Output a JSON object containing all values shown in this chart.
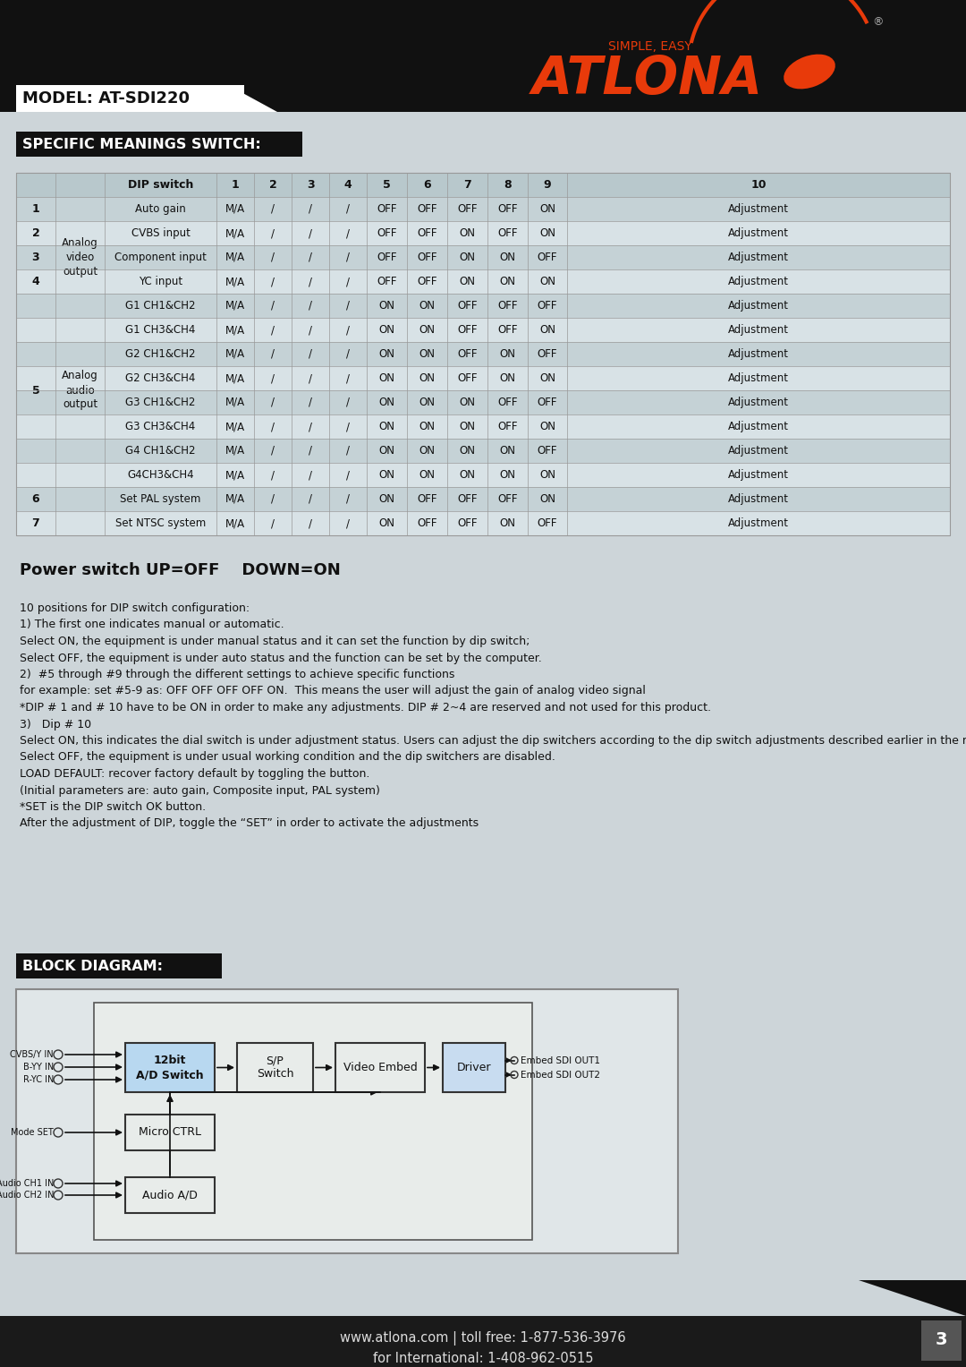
{
  "page_bg": "#cdd5d9",
  "header_bg": "#111111",
  "model_text": "MODEL: AT-SDI220",
  "section1_title": "SPECIFIC MEANINGS SWITCH:",
  "section2_title": "BLOCK DIAGRAM:",
  "title_bg": "#111111",
  "title_color": "#ffffff",
  "table_header_bg": "#b8c8cc",
  "table_row_colors": [
    "#c5d2d6",
    "#d8e2e6"
  ],
  "atlona_orange": "#e83a0a",
  "footer_bg": "#1a1a1a",
  "footer_text1": "www.atlona.com | toll free: 1-877-536-3976",
  "footer_text2": "for International: 1-408-962-0515",
  "page_number": "3",
  "power_text": "Power switch UP=OFF    DOWN=ON",
  "desc_text": "10 positions for DIP switch configuration:\n1) The first one indicates manual or automatic.\nSelect ON, the equipment is under manual status and it can set the function by dip switch;\nSelect OFF, the equipment is under auto status and the function can be set by the computer.\n2)  #5 through #9 through the different settings to achieve specific functions\nfor example: set #5-9 as: OFF OFF OFF OFF ON.  This means the user will adjust the gain of analog video signal\n*DIP # 1 and # 10 have to be ON in order to make any adjustments. DIP # 2~4 are reserved and not used for this product.\n3)   Dip # 10\nSelect ON, this indicates the dial switch is under adjustment status. Users can adjust the dip switchers according to the dip switch adjustments described earlier in the manual.\nSelect OFF, the equipment is under usual working condition and the dip switchers are disabled.\nLOAD DEFAULT: recover factory default by toggling the button.\n(Initial parameters are: auto gain, Composite input, PAL system)\n*SET is the DIP switch OK button.\nAfter the adjustment of DIP, toggle the “SET” in order to activate the adjustments",
  "table_rows": [
    [
      "1",
      "",
      "Auto gain",
      "M/A",
      "/",
      "/",
      "/",
      "OFF",
      "OFF",
      "OFF",
      "OFF",
      "ON",
      "Adjustment"
    ],
    [
      "2",
      "Analog",
      "CVBS input",
      "M/A",
      "/",
      "/",
      "/",
      "OFF",
      "OFF",
      "ON",
      "OFF",
      "ON",
      "Adjustment"
    ],
    [
      "3",
      "video",
      "Component input",
      "M/A",
      "/",
      "/",
      "/",
      "OFF",
      "OFF",
      "ON",
      "ON",
      "OFF",
      "Adjustment"
    ],
    [
      "4",
      "output",
      "YC input",
      "M/A",
      "/",
      "/",
      "/",
      "OFF",
      "OFF",
      "ON",
      "ON",
      "ON",
      "Adjustment"
    ],
    [
      "5",
      "Analog",
      "G1 CH1&CH2",
      "M/A",
      "/",
      "/",
      "/",
      "ON",
      "ON",
      "OFF",
      "OFF",
      "OFF",
      "Adjustment"
    ],
    [
      "",
      "audio",
      "G1 CH3&CH4",
      "M/A",
      "/",
      "/",
      "/",
      "ON",
      "ON",
      "OFF",
      "OFF",
      "ON",
      "Adjustment"
    ],
    [
      "",
      "output",
      "G2 CH1&CH2",
      "M/A",
      "/",
      "/",
      "/",
      "ON",
      "ON",
      "OFF",
      "ON",
      "OFF",
      "Adjustment"
    ],
    [
      "",
      "",
      "G2 CH3&CH4",
      "M/A",
      "/",
      "/",
      "/",
      "ON",
      "ON",
      "OFF",
      "ON",
      "ON",
      "Adjustment"
    ],
    [
      "",
      "",
      "G3 CH1&CH2",
      "M/A",
      "/",
      "/",
      "/",
      "ON",
      "ON",
      "ON",
      "OFF",
      "OFF",
      "Adjustment"
    ],
    [
      "",
      "",
      "G3 CH3&CH4",
      "M/A",
      "/",
      "/",
      "/",
      "ON",
      "ON",
      "ON",
      "OFF",
      "ON",
      "Adjustment"
    ],
    [
      "",
      "",
      "G4 CH1&CH2",
      "M/A",
      "/",
      "/",
      "/",
      "ON",
      "ON",
      "ON",
      "ON",
      "OFF",
      "Adjustment"
    ],
    [
      "",
      "",
      "G4CH3&CH4",
      "M/A",
      "/",
      "/",
      "/",
      "ON",
      "ON",
      "ON",
      "ON",
      "ON",
      "Adjustment"
    ],
    [
      "6",
      "",
      "Set PAL system",
      "M/A",
      "/",
      "/",
      "/",
      "ON",
      "OFF",
      "OFF",
      "OFF",
      "ON",
      "Adjustment"
    ],
    [
      "7",
      "",
      "Set NTSC system",
      "M/A",
      "/",
      "/",
      "/",
      "ON",
      "OFF",
      "OFF",
      "ON",
      "OFF",
      "Adjustment"
    ]
  ]
}
